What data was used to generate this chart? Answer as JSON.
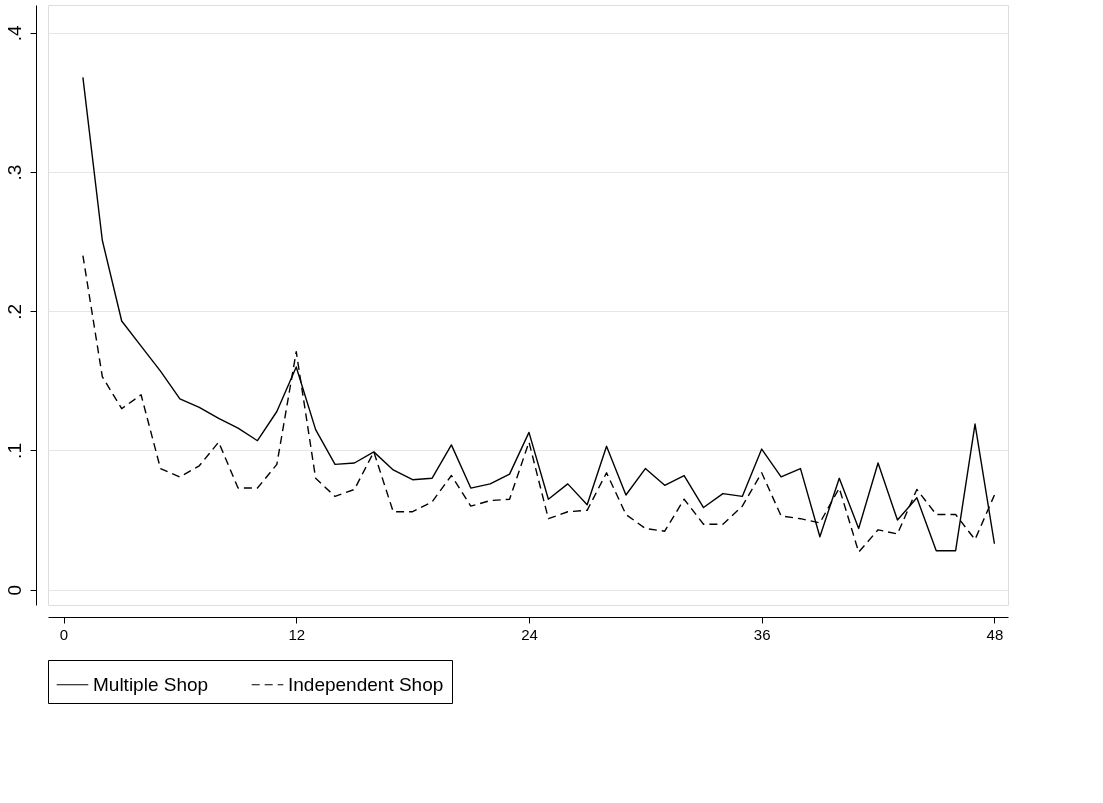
{
  "chart_data": {
    "type": "line",
    "x": [
      1,
      2,
      3,
      4,
      5,
      6,
      7,
      8,
      9,
      10,
      11,
      12,
      13,
      14,
      15,
      16,
      17,
      18,
      19,
      20,
      21,
      22,
      23,
      24,
      25,
      26,
      27,
      28,
      29,
      30,
      31,
      32,
      33,
      34,
      35,
      36,
      37,
      38,
      39,
      40,
      41,
      42,
      43,
      44,
      45,
      46,
      47,
      48
    ],
    "series": [
      {
        "name": "Multiple Shop",
        "color": "#000000",
        "line_style": "solid",
        "values": [
          0.368,
          0.251,
          0.193,
          0.175,
          0.157,
          0.137,
          0.131,
          0.123,
          0.116,
          0.107,
          0.128,
          0.16,
          0.115,
          0.09,
          0.091,
          0.099,
          0.086,
          0.079,
          0.08,
          0.104,
          0.073,
          0.076,
          0.083,
          0.113,
          0.065,
          0.076,
          0.061,
          0.103,
          0.068,
          0.087,
          0.075,
          0.082,
          0.059,
          0.069,
          0.067,
          0.101,
          0.081,
          0.087,
          0.038,
          0.08,
          0.044,
          0.091,
          0.05,
          0.066,
          0.028,
          0.028,
          0.119,
          0.033
        ]
      },
      {
        "name": "Independent Shop",
        "color": "#000000",
        "line_style": "dashed",
        "values": [
          0.24,
          0.153,
          0.13,
          0.14,
          0.087,
          0.081,
          0.089,
          0.106,
          0.073,
          0.073,
          0.09,
          0.171,
          0.08,
          0.067,
          0.072,
          0.099,
          0.056,
          0.056,
          0.063,
          0.082,
          0.06,
          0.064,
          0.065,
          0.106,
          0.051,
          0.056,
          0.057,
          0.084,
          0.054,
          0.044,
          0.042,
          0.065,
          0.047,
          0.047,
          0.06,
          0.084,
          0.053,
          0.051,
          0.048,
          0.073,
          0.027,
          0.043,
          0.04,
          0.072,
          0.054,
          0.054,
          0.036,
          0.068
        ]
      }
    ],
    "xlim": [
      -0.8,
      48.7
    ],
    "xticks": [
      0,
      12,
      24,
      36,
      48
    ],
    "ylim": [
      -0.011,
      0.42
    ],
    "yticks": [
      0,
      {
        "value": 0.1,
        "label": ".1"
      },
      {
        "value": 0.2,
        "label": ".2"
      },
      {
        "value": 0.3,
        "label": ".3"
      },
      {
        "value": 0.4,
        "label": ".4"
      }
    ],
    "grid": "y",
    "legend": "bottom",
    "marker": "none"
  }
}
